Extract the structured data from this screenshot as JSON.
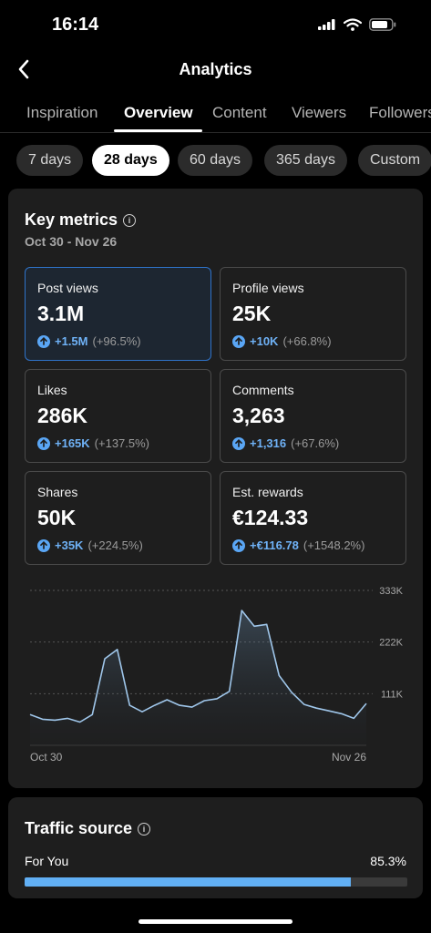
{
  "status": {
    "time": "16:14"
  },
  "header": {
    "title": "Analytics"
  },
  "tabs": [
    {
      "label": "Inspiration",
      "active": false
    },
    {
      "label": "Overview",
      "active": true
    },
    {
      "label": "Content",
      "active": false
    },
    {
      "label": "Viewers",
      "active": false
    },
    {
      "label": "Followers",
      "active": false
    }
  ],
  "ranges": [
    {
      "label": "7 days",
      "active": false
    },
    {
      "label": "28 days",
      "active": true
    },
    {
      "label": "60 days",
      "active": false
    },
    {
      "label": "365 days",
      "active": false
    },
    {
      "label": "Custom",
      "active": false
    }
  ],
  "key_metrics": {
    "title": "Key metrics",
    "date_range": "Oct 30 - Nov 26",
    "items": [
      {
        "label": "Post views",
        "value": "3.1M",
        "delta": "+1.5M",
        "delta_pct": "(+96.5%)",
        "selected": true
      },
      {
        "label": "Profile views",
        "value": "25K",
        "delta": "+10K",
        "delta_pct": "(+66.8%)",
        "selected": false
      },
      {
        "label": "Likes",
        "value": "286K",
        "delta": "+165K",
        "delta_pct": "(+137.5%)",
        "selected": false
      },
      {
        "label": "Comments",
        "value": "3,263",
        "delta": "+1,316",
        "delta_pct": "(+67.6%)",
        "selected": false
      },
      {
        "label": "Shares",
        "value": "50K",
        "delta": "+35K",
        "delta_pct": "(+224.5%)",
        "selected": false
      },
      {
        "label": "Est. rewards",
        "value": "€124.33",
        "delta": "+€116.78",
        "delta_pct": "(+1548.2%)",
        "selected": false
      }
    ]
  },
  "chart_data": {
    "type": "area",
    "title": "",
    "xlabel": "",
    "ylabel": "",
    "x_tick_labels": [
      "Oct 30",
      "Nov 26"
    ],
    "y_tick_labels": [
      "111K",
      "222K",
      "333K"
    ],
    "y_ticks": [
      111000,
      222000,
      333000
    ],
    "ylim": [
      0,
      333000
    ],
    "grid": true,
    "series": [
      {
        "values": [
          66000,
          56000,
          54000,
          58000,
          50000,
          66000,
          186000,
          206000,
          86000,
          72000,
          86000,
          98000,
          86000,
          82000,
          96000,
          100000,
          116000,
          290000,
          256000,
          260000,
          150000,
          114000,
          88000,
          80000,
          74000,
          68000,
          58000,
          90000
        ]
      }
    ]
  },
  "traffic_source": {
    "title": "Traffic source",
    "items": [
      {
        "label": "For You",
        "value": "85.3%",
        "fraction": 0.853
      }
    ]
  }
}
